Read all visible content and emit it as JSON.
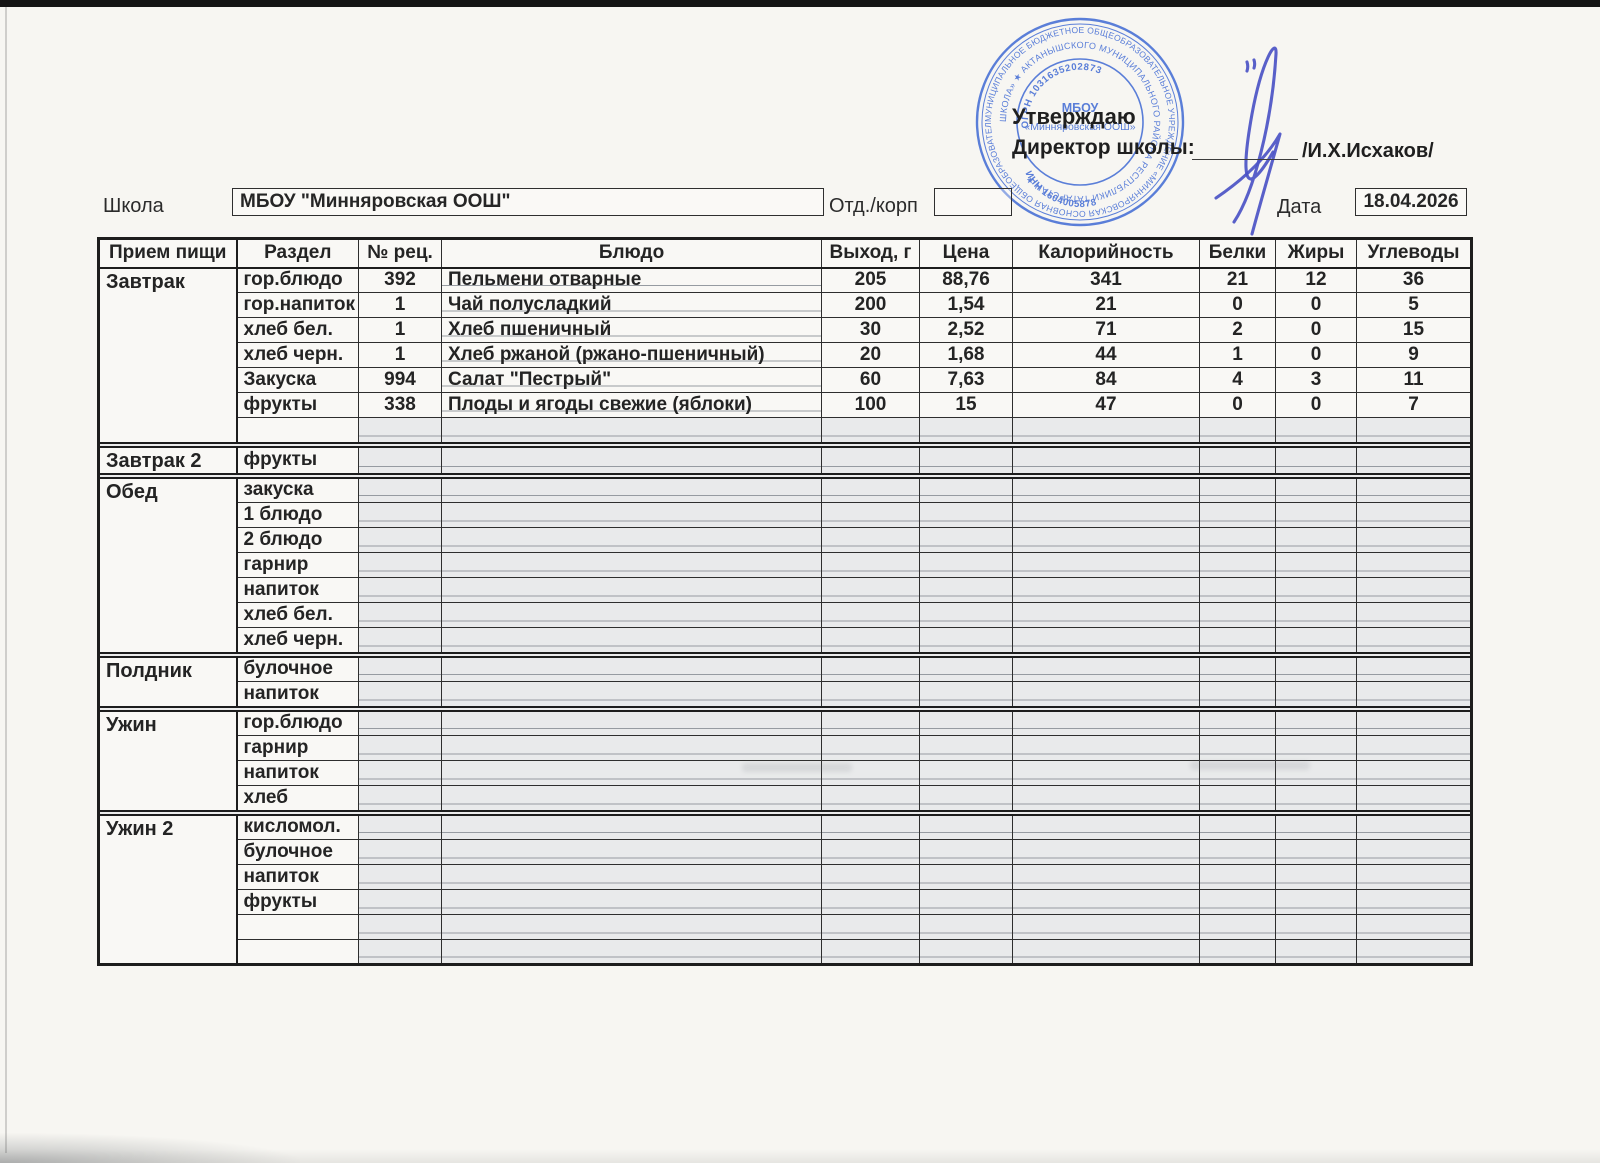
{
  "colors": {
    "stamp_blue": "#4a72d6",
    "signature_blue": "#4b53c6",
    "paper": "#f7f6f2",
    "grid_dark": "#1d1d1d",
    "shaded_cell": "#e9eaeb"
  },
  "form": {
    "school_label": "Школа",
    "school_value": "МБОУ \"Минняровская ООШ\"",
    "dept_label": "Отд./корп",
    "dept_value": "",
    "date_label": "Дата",
    "date_value": "18.04.2026"
  },
  "approval": {
    "approve_word": "Утверждаю",
    "director_label": "Директор школы:",
    "director_name": "/И.Х.Исхаков/"
  },
  "stamp": {
    "ring1_text": "МУНИЦИПАЛЬНОЕ БЮДЖЕТНОЕ ОБЩЕОБРАЗОВАТЕЛЬНОЕ УЧРЕЖДЕНИЕ «МИННЯРОВСКАЯ ОСНОВНАЯ ОБЩЕОБРАЗОВАТЕЛЬНАЯ",
    "ring2_text": "ШКОЛА» ★ АКТАНЫШСКОГО МУНИЦИПАЛЬНОГО РАЙОНА РЕСПУБЛИКИ ТАТАРСТАН ★",
    "ogrn": "ОГРН 1031635202873",
    "inn": "ИНН 1604005878",
    "center_line1": "МБОУ",
    "center_line2": "«Минняровская ООШ»"
  },
  "table": {
    "headers": [
      "Прием пищи",
      "Раздел",
      "№ рец.",
      "Блюдо",
      "Выход, г",
      "Цена",
      "Калорийность",
      "Белки",
      "Жиры",
      "Углеводы"
    ],
    "sections": [
      {
        "meal": "Завтрак",
        "rows": [
          {
            "cells": [
              "гор.блюдо",
              "392",
              "Пельмени отварные",
              "205",
              "88,76",
              "341",
              "21",
              "12",
              "36"
            ]
          },
          {
            "cells": [
              "гор.напиток",
              "1",
              "Чай полусладкий",
              "200",
              "1,54",
              "21",
              "0",
              "0",
              "5"
            ]
          },
          {
            "cells": [
              "хлеб бел.",
              "1",
              "Хлеб пшеничный",
              "30",
              "2,52",
              "71",
              "2",
              "0",
              "15"
            ]
          },
          {
            "cells": [
              "хлеб черн.",
              "1",
              "Хлеб ржаной (ржано-пшеничный)",
              "20",
              "1,68",
              "44",
              "1",
              "0",
              "9"
            ]
          },
          {
            "cells": [
              "Закуска",
              "994",
              "Салат \"Пестрый\"",
              "60",
              "7,63",
              "84",
              "4",
              "3",
              "11"
            ]
          },
          {
            "cells": [
              "фрукты",
              "338",
              "Плоды и ягоды свежие (яблоки)",
              "100",
              "15",
              "47",
              "0",
              "0",
              "7"
            ]
          },
          {
            "cells": [
              "",
              "",
              "",
              "",
              "",
              "",
              "",
              "",
              ""
            ]
          }
        ]
      },
      {
        "meal": "Завтрак 2",
        "rows": [
          {
            "cells": [
              "фрукты",
              "",
              "",
              "",
              "",
              "",
              "",
              "",
              ""
            ]
          }
        ]
      },
      {
        "meal": "Обед",
        "rows": [
          {
            "cells": [
              "закуска",
              "",
              "",
              "",
              "",
              "",
              "",
              "",
              ""
            ]
          },
          {
            "cells": [
              "1 блюдо",
              "",
              "",
              "",
              "",
              "",
              "",
              "",
              ""
            ]
          },
          {
            "cells": [
              "2 блюдо",
              "",
              "",
              "",
              "",
              "",
              "",
              "",
              ""
            ]
          },
          {
            "cells": [
              "гарнир",
              "",
              "",
              "",
              "",
              "",
              "",
              "",
              ""
            ]
          },
          {
            "cells": [
              "напиток",
              "",
              "",
              "",
              "",
              "",
              "",
              "",
              ""
            ]
          },
          {
            "cells": [
              "хлеб бел.",
              "",
              "",
              "",
              "",
              "",
              "",
              "",
              ""
            ]
          },
          {
            "cells": [
              "хлеб черн.",
              "",
              "",
              "",
              "",
              "",
              "",
              "",
              ""
            ]
          }
        ]
      },
      {
        "meal": "Полдник",
        "rows": [
          {
            "cells": [
              "булочное",
              "",
              "",
              "",
              "",
              "",
              "",
              "",
              ""
            ]
          },
          {
            "cells": [
              "напиток",
              "",
              "",
              "",
              "",
              "",
              "",
              "",
              ""
            ]
          }
        ]
      },
      {
        "meal": "Ужин",
        "rows": [
          {
            "cells": [
              "гор.блюдо",
              "",
              "",
              "",
              "",
              "",
              "",
              "",
              ""
            ]
          },
          {
            "cells": [
              "гарнир",
              "",
              "",
              "",
              "",
              "",
              "",
              "",
              ""
            ]
          },
          {
            "cells": [
              "напиток",
              "",
              "",
              "",
              "",
              "",
              "",
              "",
              ""
            ]
          },
          {
            "cells": [
              "хлеб",
              "",
              "",
              "",
              "",
              "",
              "",
              "",
              ""
            ]
          }
        ]
      },
      {
        "meal": "Ужин 2",
        "rows": [
          {
            "cells": [
              "кисломол.",
              "",
              "",
              "",
              "",
              "",
              "",
              "",
              ""
            ]
          },
          {
            "cells": [
              "булочное",
              "",
              "",
              "",
              "",
              "",
              "",
              "",
              ""
            ]
          },
          {
            "cells": [
              "напиток",
              "",
              "",
              "",
              "",
              "",
              "",
              "",
              ""
            ]
          },
          {
            "cells": [
              "фрукты",
              "",
              "",
              "",
              "",
              "",
              "",
              "",
              ""
            ]
          },
          {
            "cells": [
              "",
              "",
              "",
              "",
              "",
              "",
              "",
              "",
              ""
            ]
          },
          {
            "cells": [
              "",
              "",
              "",
              "",
              "",
              "",
              "",
              "",
              ""
            ]
          }
        ]
      }
    ]
  }
}
